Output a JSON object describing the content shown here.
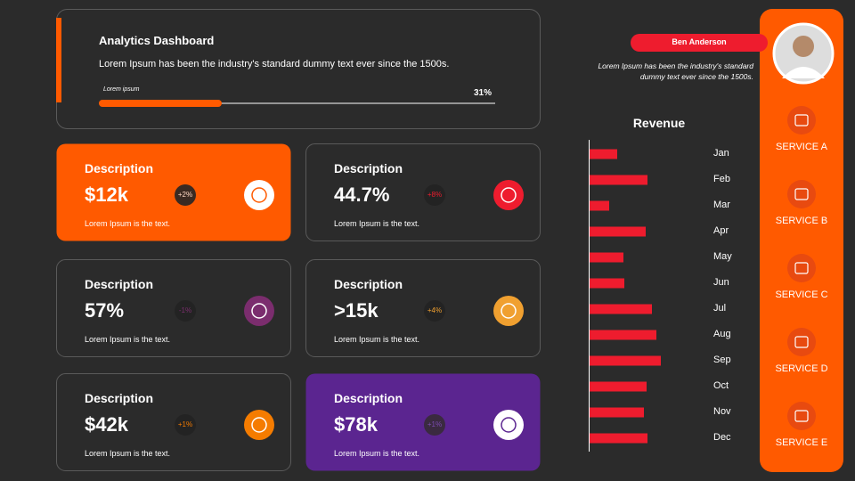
{
  "header": {
    "title": "Analytics Dashboard",
    "text": "Lorem Ipsum has been the industry's standard dummy text ever since the 1500s.",
    "progress_caption": "Lorem ipsum",
    "progress": {
      "value": 31,
      "label": "31%"
    }
  },
  "cards": [
    {
      "title": "Description",
      "value": "$12k",
      "change": "+2%",
      "text": "Lorem Ipsum is the text."
    },
    {
      "title": "Description",
      "value": "44.7%",
      "change": "+8%",
      "text": "Lorem Ipsum is the text."
    },
    {
      "title": "Description",
      "value": "57%",
      "change": "-1%",
      "text": "Lorem Ipsum is the text."
    },
    {
      "title": "Description",
      "value": ">15k",
      "change": "+4%",
      "text": "Lorem Ipsum is the text."
    },
    {
      "title": "Description",
      "value": "$42k",
      "change": "+1%",
      "text": "Lorem Ipsum is the text."
    },
    {
      "title": "Description",
      "value": "$78k",
      "change": "+1%",
      "text": "Lorem Ipsum is the text."
    }
  ],
  "profile": {
    "name": "Ben Anderson",
    "text": "Lorem Ipsum has been the industry's standard dummy text ever since the 1500s."
  },
  "chart_data": {
    "type": "hbar",
    "title": "Revenue",
    "categories": [
      "Jan",
      "Feb",
      "Mar",
      "Apr",
      "May",
      "Jun",
      "Jul",
      "Aug",
      "Sep",
      "Oct",
      "Nov",
      "Dec"
    ],
    "values": [
      31,
      65,
      22,
      63,
      38,
      39,
      70,
      75,
      80,
      64,
      61,
      65
    ],
    "color": "#ee1c2e",
    "xlim": [
      0,
      100
    ]
  },
  "services": [
    "SERVICE A",
    "SERVICE B",
    "SERVICE C",
    "SERVICE D",
    "SERVICE E"
  ]
}
